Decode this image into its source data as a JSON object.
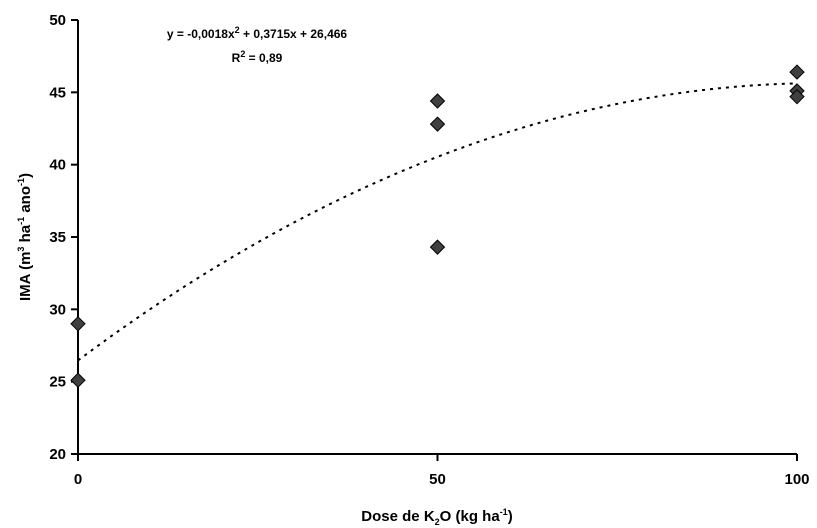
{
  "chart_data": {
    "type": "scatter",
    "xlabel": {
      "pre": "Dose de K",
      "sub": "2",
      "mid": "O (kg ha",
      "sup": "-1",
      "post": ")"
    },
    "ylabel": {
      "pre": "IMA (m",
      "sup1": "3",
      "mid": " ha",
      "sup2": "-1",
      "mid2": " ano",
      "sup3": "-1",
      "post": ")"
    },
    "xlim": [
      0,
      100
    ],
    "ylim": [
      20,
      50
    ],
    "x_ticks": [
      0,
      50,
      100
    ],
    "y_ticks": [
      20,
      25,
      30,
      35,
      40,
      45,
      50
    ],
    "grid": false,
    "series": [
      {
        "marker": "diamond",
        "color": "#404040",
        "points": [
          {
            "x": 0,
            "y": 29.0
          },
          {
            "x": 0,
            "y": 25.1
          },
          {
            "x": 50,
            "y": 44.4
          },
          {
            "x": 50,
            "y": 42.8
          },
          {
            "x": 50,
            "y": 34.3
          },
          {
            "x": 100,
            "y": 46.4
          },
          {
            "x": 100,
            "y": 45.1
          },
          {
            "x": 100,
            "y": 44.7
          }
        ]
      }
    ],
    "trendline": {
      "type": "polynomial",
      "style": "dotted",
      "coefficients": {
        "a": -0.0018,
        "b": 0.3715,
        "c": 26.466
      },
      "equation": {
        "pre": "y = -0,0018x",
        "sup": "2",
        "post": " + 0,3715x + 26,466"
      },
      "r2": {
        "pre": "R",
        "sup": "2",
        "post": " = 0,89"
      }
    }
  }
}
